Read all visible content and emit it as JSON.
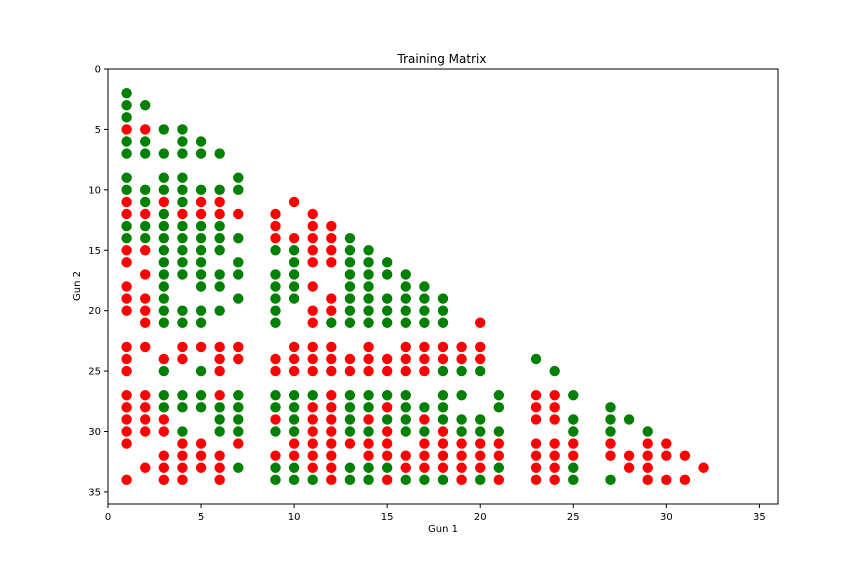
{
  "chart_data": {
    "type": "scatter",
    "title": "Training Matrix",
    "xlabel": "Gun 1",
    "ylabel": "Gun 2",
    "xlim": [
      0,
      36
    ],
    "ylim": [
      0,
      36
    ],
    "y_inverted": true,
    "x_ticks": [
      0,
      5,
      10,
      15,
      20,
      25,
      30,
      35
    ],
    "y_ticks": [
      0,
      5,
      10,
      15,
      20,
      25,
      30,
      35
    ],
    "grid": false,
    "colors": {
      "green": "#008000",
      "red": "#ff0000"
    },
    "rows": [
      {
        "y": 2,
        "g": [
          1
        ],
        "r": []
      },
      {
        "y": 3,
        "g": [
          1,
          2
        ],
        "r": []
      },
      {
        "y": 4,
        "g": [
          1
        ],
        "r": []
      },
      {
        "y": 5,
        "g": [
          3,
          4
        ],
        "r": [
          1,
          2
        ]
      },
      {
        "y": 6,
        "g": [
          1,
          2,
          4,
          5
        ],
        "r": []
      },
      {
        "y": 7,
        "g": [
          1,
          2,
          3,
          4,
          5,
          6
        ],
        "r": []
      },
      {
        "y": 9,
        "g": [
          1,
          3,
          4,
          7
        ],
        "r": []
      },
      {
        "y": 10,
        "g": [
          1,
          2,
          3,
          4,
          5,
          6,
          7
        ],
        "r": []
      },
      {
        "y": 11,
        "g": [
          2,
          4
        ],
        "r": [
          1,
          3,
          5,
          6,
          10
        ]
      },
      {
        "y": 12,
        "g": [
          3
        ],
        "r": [
          1,
          2,
          4,
          5,
          6,
          7,
          9,
          11
        ]
      },
      {
        "y": 13,
        "g": [
          1,
          2,
          3,
          4,
          5,
          6
        ],
        "r": [
          9,
          11,
          12
        ]
      },
      {
        "y": 14,
        "g": [
          1,
          2,
          3,
          4,
          5,
          6,
          7,
          13
        ],
        "r": [
          9,
          10,
          11,
          12
        ]
      },
      {
        "y": 15,
        "g": [
          3,
          4,
          5,
          6,
          9,
          10,
          13,
          14
        ],
        "r": [
          1,
          2,
          11,
          12
        ]
      },
      {
        "y": 16,
        "g": [
          3,
          4,
          5,
          7,
          10,
          13,
          14,
          15
        ],
        "r": [
          1,
          11,
          12
        ]
      },
      {
        "y": 17,
        "g": [
          3,
          4,
          5,
          6,
          7,
          9,
          10,
          13,
          14,
          15,
          16
        ],
        "r": [
          2
        ]
      },
      {
        "y": 18,
        "g": [
          3,
          5,
          6,
          9,
          10,
          13,
          14,
          16,
          17
        ],
        "r": [
          1,
          11
        ]
      },
      {
        "y": 19,
        "g": [
          3,
          7,
          9,
          10,
          13,
          14,
          15,
          16,
          17,
          18
        ],
        "r": [
          1,
          2,
          12
        ]
      },
      {
        "y": 20,
        "g": [
          3,
          4,
          5,
          6,
          9,
          13,
          14,
          15,
          16,
          17,
          18
        ],
        "r": [
          1,
          2,
          11,
          12
        ]
      },
      {
        "y": 21,
        "g": [
          3,
          4,
          5,
          9,
          12,
          13,
          14,
          15,
          16,
          17,
          18
        ],
        "r": [
          2,
          11,
          20
        ]
      },
      {
        "y": 23,
        "g": [],
        "r": [
          1,
          2,
          4,
          5,
          6,
          7,
          10,
          11,
          12,
          14,
          16,
          17,
          18,
          19,
          20
        ]
      },
      {
        "y": 24,
        "g": [
          23
        ],
        "r": [
          1,
          3,
          4,
          6,
          7,
          9,
          10,
          11,
          12,
          13,
          14,
          15,
          16,
          17,
          18,
          19,
          20
        ]
      },
      {
        "y": 25,
        "g": [
          3,
          5,
          18,
          19,
          20,
          24
        ],
        "r": [
          1,
          6,
          9,
          10,
          11,
          12,
          13,
          14,
          15,
          16,
          17
        ]
      },
      {
        "y": 27,
        "g": [
          3,
          4,
          5,
          7,
          9,
          10,
          11,
          13,
          14,
          15,
          16,
          18,
          19,
          21,
          25
        ],
        "r": [
          1,
          2,
          6,
          12,
          23,
          24
        ]
      },
      {
        "y": 28,
        "g": [
          3,
          4,
          5,
          6,
          7,
          9,
          10,
          13,
          14,
          16,
          17,
          18,
          21,
          27
        ],
        "r": [
          1,
          2,
          11,
          12,
          15,
          23,
          24
        ]
      },
      {
        "y": 29,
        "g": [
          6,
          7,
          10,
          13,
          15,
          16,
          18,
          19,
          20,
          25,
          27,
          28
        ],
        "r": [
          1,
          2,
          3,
          9,
          11,
          12,
          14,
          17,
          23,
          24
        ]
      },
      {
        "y": 30,
        "g": [
          4,
          6,
          7,
          9,
          10,
          13,
          14,
          16,
          17,
          19,
          20,
          21,
          25,
          27,
          29
        ],
        "r": [
          1,
          2,
          3,
          11,
          12,
          15,
          18
        ]
      },
      {
        "y": 31,
        "g": [],
        "r": [
          1,
          4,
          5,
          7,
          10,
          11,
          12,
          13,
          14,
          15,
          17,
          18,
          19,
          20,
          21,
          23,
          24,
          25,
          27,
          29,
          30
        ]
      },
      {
        "y": 32,
        "g": [],
        "r": [
          3,
          4,
          5,
          6,
          9,
          10,
          11,
          12,
          14,
          15,
          16,
          17,
          18,
          19,
          20,
          21,
          23,
          24,
          25,
          27,
          28,
          29,
          30,
          31
        ]
      },
      {
        "y": 33,
        "g": [
          7,
          9,
          10,
          13,
          14,
          15,
          21,
          25
        ],
        "r": [
          2,
          3,
          4,
          5,
          6,
          11,
          12,
          16,
          17,
          18,
          19,
          20,
          23,
          24,
          28,
          29,
          32
        ]
      },
      {
        "y": 34,
        "g": [
          9,
          10,
          11,
          13,
          14,
          16,
          17,
          18,
          20,
          25,
          27
        ],
        "r": [
          1,
          3,
          4,
          6,
          12,
          15,
          19,
          21,
          23,
          24,
          29,
          30,
          31
        ]
      }
    ]
  }
}
